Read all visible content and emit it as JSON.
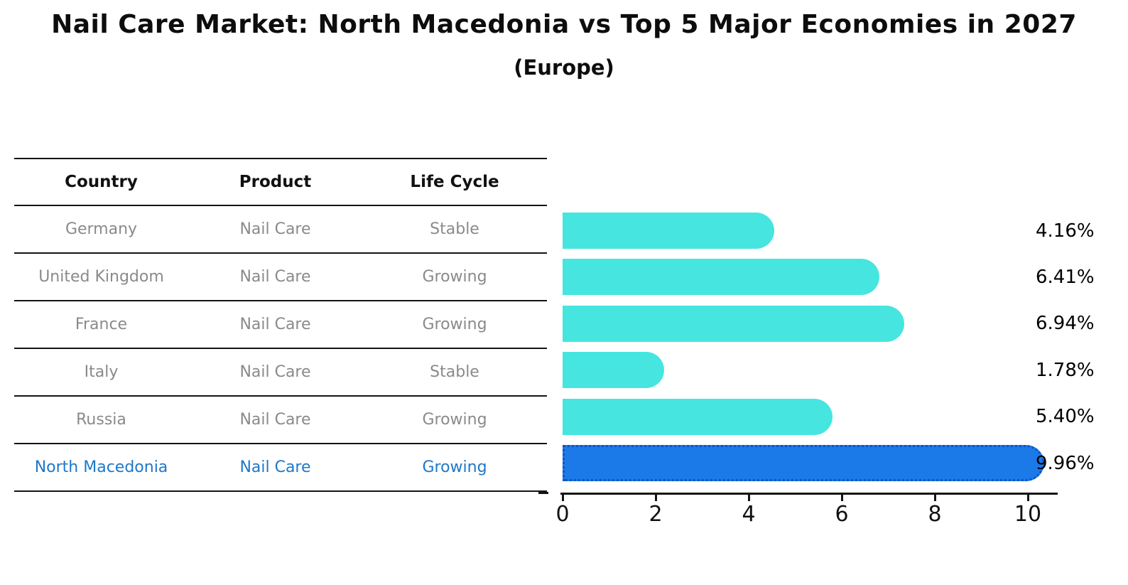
{
  "header": {
    "title": "Nail Care Market: North Macedonia vs Top 5 Major Economies in 2027",
    "subtitle": "(Europe)"
  },
  "table": {
    "columns": [
      "Country",
      "Product",
      "Life Cycle"
    ],
    "rows": [
      {
        "country": "Germany",
        "product": "Nail Care",
        "life_cycle": "Stable",
        "highlight": false
      },
      {
        "country": "United Kingdom",
        "product": "Nail Care",
        "life_cycle": "Growing",
        "highlight": false
      },
      {
        "country": "France",
        "product": "Nail Care",
        "life_cycle": "Growing",
        "highlight": false
      },
      {
        "country": "Italy",
        "product": "Nail Care",
        "life_cycle": "Stable",
        "highlight": false
      },
      {
        "country": "Russia",
        "product": "Nail Care",
        "life_cycle": "Growing",
        "highlight": false
      },
      {
        "country": "North Macedonia",
        "product": "Nail Care",
        "life_cycle": "Growing",
        "highlight": true
      }
    ]
  },
  "chart_data": {
    "type": "bar",
    "orientation": "horizontal",
    "title": "Nail Care Market: North Macedonia vs Top 5 Major Economies in 2027",
    "subtitle": "(Europe)",
    "categories": [
      "Germany",
      "United Kingdom",
      "France",
      "Italy",
      "Russia",
      "North Macedonia"
    ],
    "values": [
      4.16,
      6.41,
      6.94,
      1.78,
      5.4,
      9.96
    ],
    "value_labels": [
      "4.16%",
      "6.41%",
      "6.94%",
      "1.78%",
      "5.40%",
      "9.96%"
    ],
    "x_ticks": [
      "0",
      "2",
      "4",
      "6",
      "8",
      "10"
    ],
    "xlim": [
      0,
      10.6
    ],
    "grid": false,
    "legend": "none",
    "bar_color": "#46e5e0",
    "highlight_index": 5,
    "highlight_color": "#1c79e8",
    "highlight_border_color": "#0d55c5",
    "row_text_color": "#8a8a8a",
    "highlight_text_color": "#1e78c8"
  }
}
